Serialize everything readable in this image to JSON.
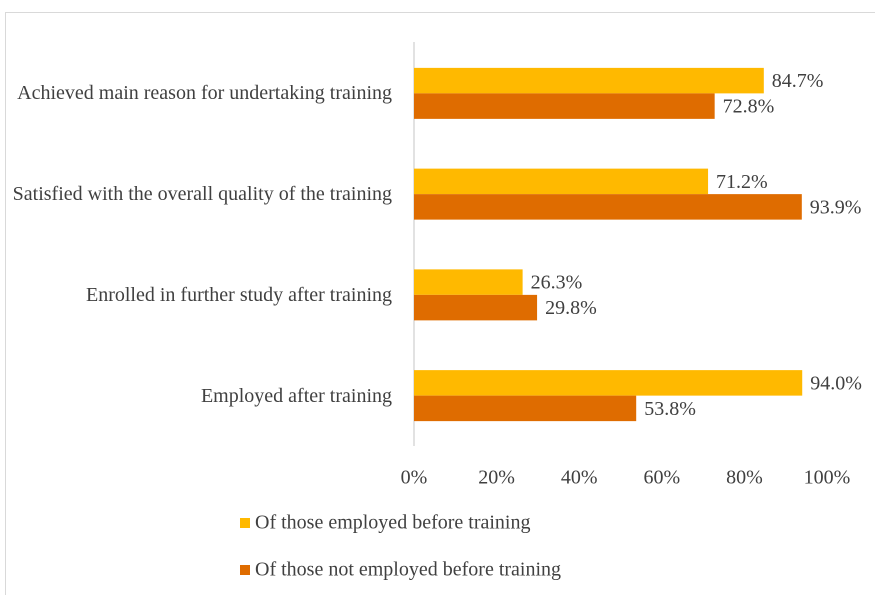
{
  "chart_data": {
    "type": "bar",
    "orientation": "horizontal",
    "categories": [
      "Achieved main reason for undertaking training",
      "Satisfied with the overall quality of the training",
      "Enrolled in further study after training",
      "Employed after training"
    ],
    "series": [
      {
        "name": "Of those employed before training",
        "color": "#ffb900",
        "values": [
          84.7,
          71.2,
          26.3,
          94.0
        ],
        "value_labels": [
          "84.7%",
          "71.2%",
          "26.3%",
          "94.0%"
        ]
      },
      {
        "name": "Of those not employed before training",
        "color": "#df6c00",
        "values": [
          72.8,
          93.9,
          29.8,
          53.8
        ],
        "value_labels": [
          "72.8%",
          "93.9%",
          "29.8%",
          "53.8%"
        ]
      }
    ],
    "xlim": [
      0,
      100
    ],
    "xticks": [
      {
        "value": 0,
        "label": "0%"
      },
      {
        "value": 20,
        "label": "20%"
      },
      {
        "value": 40,
        "label": "40%"
      },
      {
        "value": 60,
        "label": "60%"
      },
      {
        "value": 80,
        "label": "80%"
      },
      {
        "value": 100,
        "label": "100%"
      }
    ],
    "grid": false,
    "legend": "bottom"
  }
}
